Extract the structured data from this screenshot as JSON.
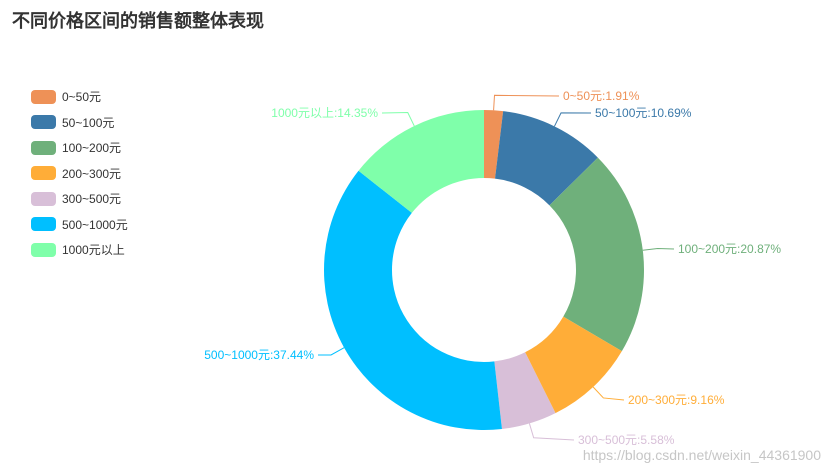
{
  "chart_data": {
    "type": "pie",
    "donut": true,
    "title": "不同价格区间的销售额整体表现",
    "categories": [
      "0~50元",
      "50~100元",
      "100~200元",
      "200~300元",
      "300~500元",
      "500~1000元",
      "1000元以上"
    ],
    "values": [
      1.91,
      10.69,
      20.87,
      9.16,
      5.58,
      37.44,
      14.35
    ],
    "labels": [
      "0~50元:1.91%",
      "50~100元:10.69%",
      "100~200元:20.87%",
      "200~300元:9.16%",
      "300~500元:5.58%",
      "500~1000元:37.44%",
      "1000元以上:14.35%"
    ],
    "colors": [
      "#EE9157",
      "#3B79A9",
      "#6FB07B",
      "#FFAD38",
      "#D8BFD8",
      "#00BFFF",
      "#7FFFAA"
    ],
    "legend": {
      "position": "left",
      "orient": "vertical"
    }
  },
  "watermark": "https://blog.csdn.net/weixin_44361900"
}
